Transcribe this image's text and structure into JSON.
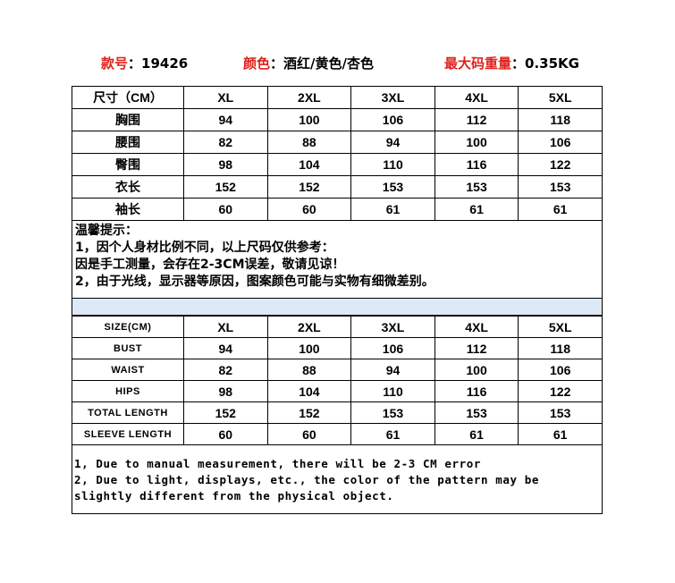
{
  "header": {
    "style_label": "款号",
    "style_value": "：19426",
    "color_label": "颜色",
    "color_value": "：酒红/黄色/杏色",
    "weight_label": "最大码重量",
    "weight_value": "：0.35KG"
  },
  "cn_table": {
    "headers": [
      "尺寸（CM）",
      "XL",
      "2XL",
      "3XL",
      "4XL",
      "5XL"
    ],
    "rows": [
      [
        "胸围",
        "94",
        "100",
        "106",
        "112",
        "118"
      ],
      [
        "腰围",
        "82",
        "88",
        "94",
        "100",
        "106"
      ],
      [
        "臀围",
        "98",
        "104",
        "110",
        "116",
        "122"
      ],
      [
        "衣长",
        "152",
        "152",
        "153",
        "153",
        "153"
      ],
      [
        "袖长",
        "60",
        "60",
        "61",
        "61",
        "61"
      ]
    ]
  },
  "cn_notes": [
    "温馨提示：",
    "1，因个人身材比例不同，以上尺码仅供参考：",
    "因是手工测量，会存在2-3CM误差，敬请见谅！",
    "2，由于光线，显示器等原因，图案颜色可能与实物有细微差别。"
  ],
  "en_table": {
    "headers": [
      "SIZE(CM)",
      "XL",
      "2XL",
      "3XL",
      "4XL",
      "5XL"
    ],
    "rows": [
      [
        "BUST",
        "94",
        "100",
        "106",
        "112",
        "118"
      ],
      [
        "WAIST",
        "82",
        "88",
        "94",
        "100",
        "106"
      ],
      [
        "HIPS",
        "98",
        "104",
        "110",
        "116",
        "122"
      ],
      [
        "TOTAL LENGTH",
        "152",
        "152",
        "153",
        "153",
        "153"
      ],
      [
        "SLEEVE LENGTH",
        "60",
        "60",
        "61",
        "61",
        "61"
      ]
    ]
  },
  "en_notes": [
    "1, Due to manual measurement, there will be 2-3 CM error",
    "2, Due to light, displays, etc., the color of the pattern may be",
    "slightly different from the physical object."
  ],
  "colors": {
    "label_red": "#e0201b",
    "band_blue": "#dde9f5"
  }
}
